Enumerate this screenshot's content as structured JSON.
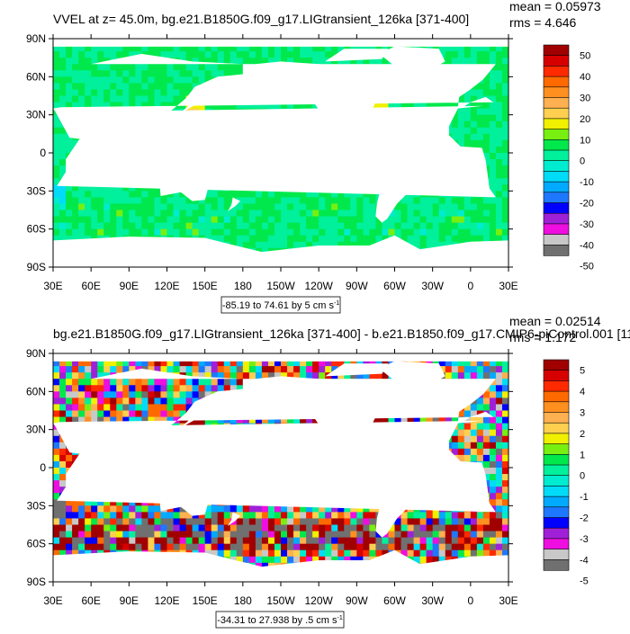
{
  "palette": [
    "#707070",
    "#c8c8c8",
    "#ee0ee0",
    "#a020d8",
    "#0000ff",
    "#1e78ff",
    "#00aaff",
    "#00dcf8",
    "#00ecd0",
    "#00f09c",
    "#00e84c",
    "#78ef10",
    "#f0f000",
    "#ffd050",
    "#ffb050",
    "#ff9020",
    "#ff6a00",
    "#ff2a00",
    "#d70000",
    "#a00000"
  ],
  "land_color": "#ffffff",
  "chart_data": [
    {
      "type": "heatmap",
      "title": "VVEL at z=  45.0m, bg.e21.B1850G.f09_g17.LIGtransient_126ka [371-400]",
      "stats": {
        "mean": "mean = 0.05973",
        "rms": "rms = 4.646"
      },
      "contour_info": "-85.19 to 74.61 by 5 cm s",
      "units_exp": "-1",
      "x_ticks": [
        "30E",
        "60E",
        "90E",
        "120E",
        "150E",
        "180",
        "150W",
        "120W",
        "90W",
        "60W",
        "30W",
        "0",
        "30E"
      ],
      "y_ticks": [
        "90N",
        "60N",
        "30N",
        "0",
        "30S",
        "60S",
        "90S"
      ],
      "xlim": [
        30,
        390
      ],
      "ylim": [
        -90,
        90
      ],
      "colorbar_labels": [
        "50",
        "40",
        "30",
        "20",
        "10",
        "0",
        "-10",
        "-20",
        "-30",
        "-40",
        "-50"
      ],
      "colorbar_min": -50,
      "colorbar_max": 50,
      "colorbar_bins": 20
    },
    {
      "type": "heatmap",
      "title": "bg.e21.B1850G.f09_g17.LIGtransient_126ka [371-400] - b.e21.B1850.f09_g17.CMIP6-piControl.001 [11",
      "stats": {
        "mean": "mean = 0.02514",
        "rms": "rms = 1.172"
      },
      "contour_info": "-34.31 to 27.938 by .5 cm s",
      "units_exp": "-1",
      "x_ticks": [
        "30E",
        "60E",
        "90E",
        "120E",
        "150E",
        "180",
        "150W",
        "120W",
        "90W",
        "60W",
        "30W",
        "0",
        "30E"
      ],
      "y_ticks": [
        "90N",
        "60N",
        "30N",
        "0",
        "30S",
        "60S",
        "90S"
      ],
      "xlim": [
        30,
        390
      ],
      "ylim": [
        -90,
        90
      ],
      "colorbar_labels": [
        "5",
        "4",
        "3",
        "2",
        "1",
        "0",
        "-1",
        "-2",
        "-3",
        "-4",
        "-5"
      ],
      "colorbar_min": -5,
      "colorbar_max": 5,
      "colorbar_bins": 20
    }
  ]
}
